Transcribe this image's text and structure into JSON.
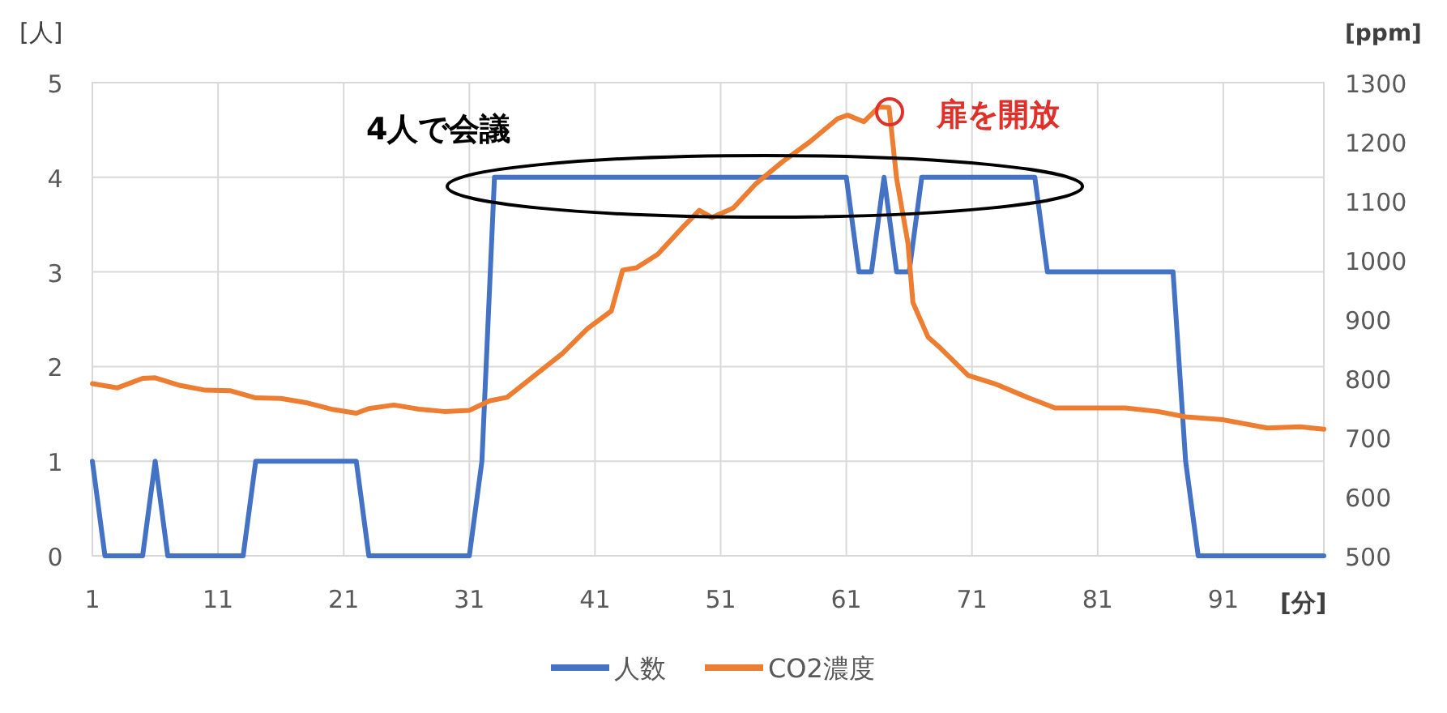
{
  "chart_data": {
    "type": "line",
    "xlabel": "[分]",
    "ylabel": "[人]",
    "y2label": "[ppm]",
    "xlim": [
      1,
      99
    ],
    "xticks": [
      1,
      11,
      21,
      31,
      41,
      51,
      61,
      71,
      81,
      91
    ],
    "ylim": [
      0,
      5
    ],
    "yticks": [
      0,
      1,
      2,
      3,
      4,
      5
    ],
    "y2lim": [
      500,
      1300
    ],
    "y2ticks": [
      500,
      600,
      700,
      800,
      900,
      1000,
      1100,
      1200,
      1300
    ],
    "grid": true,
    "legend": "bottom",
    "marker": "none",
    "line_style": "solid",
    "annotations": [
      "4人で会議",
      "扉を開放"
    ],
    "series": [
      {
        "name": "人数",
        "color": "#4472c4",
        "x": [
          1,
          2,
          5,
          6,
          7,
          13,
          14,
          22,
          23,
          31,
          32,
          33,
          61,
          62,
          63,
          64,
          65,
          66,
          67,
          76,
          77,
          87,
          88,
          89,
          99
        ],
        "values": [
          1,
          0,
          0,
          1,
          0,
          0,
          1,
          1,
          0,
          0,
          1,
          4,
          4,
          3,
          3,
          4,
          3,
          3,
          4,
          4,
          3,
          3,
          1,
          0,
          0
        ]
      },
      {
        "name": "CO2濃度",
        "color": "#ed7d31",
        "axis": "y2",
        "x": [
          1,
          3,
          5,
          6,
          8,
          10,
          12,
          14,
          16,
          18,
          20,
          22,
          23,
          25,
          27,
          29,
          31,
          32.6,
          34,
          36.5,
          38.4,
          40.4,
          42.3,
          43.2,
          44.3,
          46,
          48,
          49.3,
          50.3,
          52,
          53.8,
          55.9,
          58.1,
          60.3,
          61.1,
          62.4,
          63.6,
          64.4,
          65,
          65.9,
          66.3,
          67.5,
          68.5,
          70.7,
          72.8,
          75.4,
          77.6,
          80.6,
          83.2,
          85.8,
          88,
          91,
          94.5,
          97.1,
          99
        ],
        "values": [
          791,
          784,
          800,
          801,
          788,
          780,
          779,
          767,
          766,
          759,
          748,
          741,
          749,
          755,
          748,
          744,
          746,
          762,
          768,
          810,
          842,
          884,
          914,
          983,
          987,
          1010,
          1056,
          1084,
          1072,
          1088,
          1129,
          1166,
          1200,
          1239,
          1245,
          1234,
          1259,
          1258,
          1138,
          1029,
          928,
          870,
          851,
          805,
          791,
          768,
          750,
          750,
          750,
          744,
          735,
          730,
          716,
          718,
          714
        ]
      }
    ]
  }
}
